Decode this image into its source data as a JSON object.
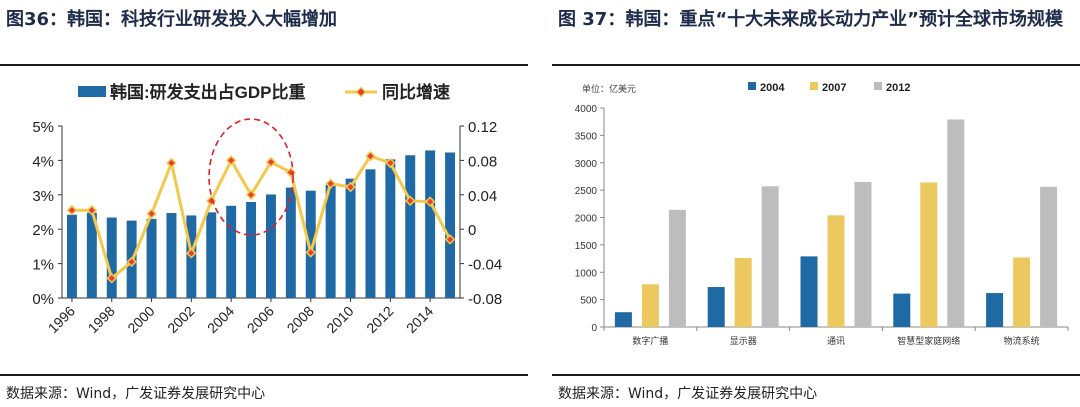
{
  "left": {
    "title": "图36：韩国：科技行业研发投入大幅增加",
    "source": "数据来源：Wind，广发证券发展研究中心",
    "colors": {
      "bar": "#1f6aa5",
      "line": "#f2c94c",
      "marker": "#e8412c",
      "circle": "#e0202a"
    }
  },
  "right": {
    "title": "图 37：韩国：重点“十大未来成长动力产业”预计全球市场规模",
    "source": "数据来源：Wind，广发证券发展研究中心",
    "unit_label": "单位：亿美元",
    "colors": {
      "s2004": "#1f6aa5",
      "s2007": "#ecc95e",
      "s2012": "#bdbdbd"
    }
  },
  "chart_data": [
    {
      "type": "bar+line",
      "title": "韩国：科技行业研发投入大幅增加",
      "x": [
        "1996",
        "1997",
        "1998",
        "1999",
        "2000",
        "2001",
        "2002",
        "2003",
        "2004",
        "2005",
        "2006",
        "2007",
        "2008",
        "2009",
        "2010",
        "2011",
        "2012",
        "2013",
        "2014",
        "2015"
      ],
      "xtick_labels": [
        "1996",
        "1998",
        "2000",
        "2002",
        "2004",
        "2006",
        "2008",
        "2010",
        "2012",
        "2014"
      ],
      "series": [
        {
          "name": "韩国:研发支出占GDP比重",
          "kind": "bar",
          "axis": "left",
          "values": [
            2.42,
            2.48,
            2.34,
            2.25,
            2.3,
            2.47,
            2.4,
            2.49,
            2.68,
            2.79,
            3.01,
            3.21,
            3.12,
            3.29,
            3.47,
            3.74,
            4.03,
            4.15,
            4.29,
            4.23
          ]
        },
        {
          "name": "同比增速",
          "kind": "line",
          "axis": "right",
          "values": [
            0.022,
            0.022,
            -0.057,
            -0.038,
            0.018,
            0.077,
            -0.028,
            0.033,
            0.08,
            0.04,
            0.078,
            0.066,
            -0.027,
            0.053,
            0.049,
            0.085,
            0.077,
            0.033,
            0.032,
            -0.012
          ]
        }
      ],
      "y_left": {
        "ylim": [
          0,
          5
        ],
        "ticks": [
          "0%",
          "1%",
          "2%",
          "3%",
          "4%",
          "5%"
        ]
      },
      "y_right": {
        "ylim": [
          -0.08,
          0.12
        ],
        "ticks": [
          "-0.08",
          "-0.04",
          "0",
          "0.04",
          "0.08",
          "0.12"
        ]
      },
      "grid": false,
      "legend": "top"
    },
    {
      "type": "bar",
      "title": "韩国：重点“十大未来成长动力产业”预计全球市场规模",
      "categories": [
        "数字广播",
        "显示器",
        "通讯",
        "智慧型家庭网络",
        "物流系统"
      ],
      "series": [
        {
          "name": "2004",
          "values": [
            270,
            730,
            1290,
            610,
            620
          ]
        },
        {
          "name": "2007",
          "values": [
            780,
            1260,
            2040,
            2640,
            1270
          ]
        },
        {
          "name": "2012",
          "values": [
            2140,
            2570,
            2650,
            3790,
            2560
          ]
        }
      ],
      "ylabel": "单位：亿美元",
      "ylim": [
        0,
        4000
      ],
      "ticks": [
        "0",
        "500",
        "1000",
        "1500",
        "2000",
        "2500",
        "3000",
        "3500",
        "4000"
      ],
      "grid": false,
      "legend": "top"
    }
  ]
}
